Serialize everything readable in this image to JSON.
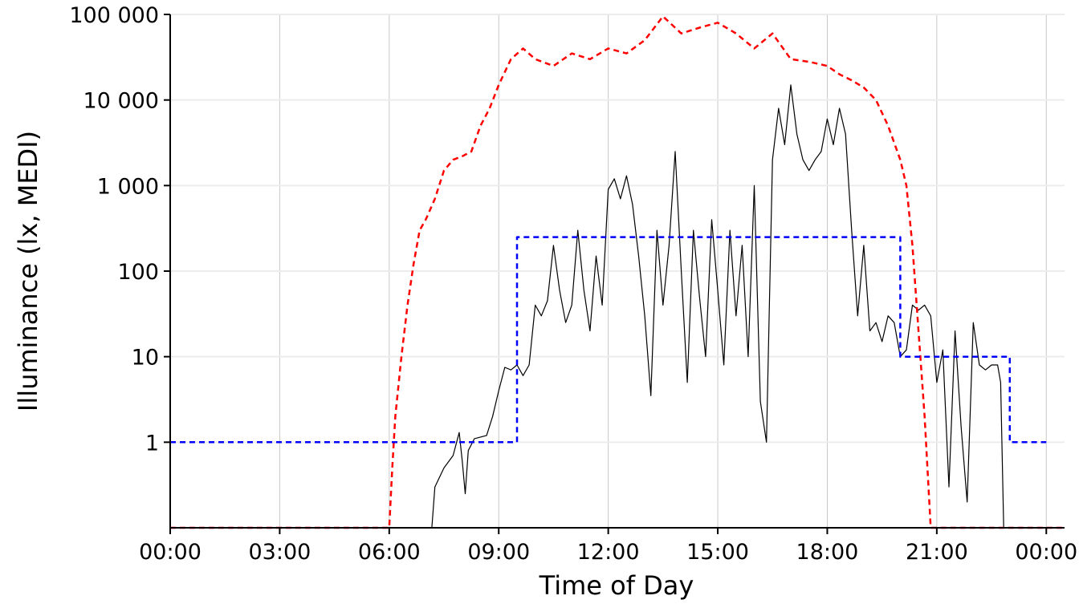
{
  "chart_data": {
    "type": "line",
    "title": "",
    "xlabel": "Time of Day",
    "ylabel": "Illuminance (lx, MEDI)",
    "x_unit": "time of day",
    "xlim": [
      "00:00",
      "24:30"
    ],
    "ylim": [
      0.1,
      100000
    ],
    "y_scale": "log10",
    "grid": true,
    "legend": "none",
    "x_ticks": [
      "00:00",
      "03:00",
      "06:00",
      "09:00",
      "12:00",
      "15:00",
      "18:00",
      "21:00",
      "00:00"
    ],
    "y_ticks": [
      {
        "value": 1,
        "label": "1"
      },
      {
        "value": 10,
        "label": "10"
      },
      {
        "value": 100,
        "label": "100"
      },
      {
        "value": 1000,
        "label": "1 000"
      },
      {
        "value": 10000,
        "label": "10 000"
      },
      {
        "value": 100000,
        "label": "100 000"
      }
    ],
    "series": [
      {
        "color": "#000000",
        "style": "solid",
        "points": [
          [
            "00:00",
            0.1
          ],
          [
            "07:10",
            0.1
          ],
          [
            "07:15",
            0.3
          ],
          [
            "07:30",
            0.5
          ],
          [
            "07:45",
            0.7
          ],
          [
            "07:55",
            1.3
          ],
          [
            "08:00",
            0.6
          ],
          [
            "08:05",
            0.25
          ],
          [
            "08:10",
            0.8
          ],
          [
            "08:20",
            1.1
          ],
          [
            "08:40",
            1.2
          ],
          [
            "08:50",
            2.0
          ],
          [
            "09:00",
            4.0
          ],
          [
            "09:10",
            7.5
          ],
          [
            "09:20",
            7.0
          ],
          [
            "09:30",
            8.0
          ],
          [
            "09:40",
            6.0
          ],
          [
            "09:50",
            8.0
          ],
          [
            "10:00",
            40
          ],
          [
            "10:10",
            30
          ],
          [
            "10:20",
            45
          ],
          [
            "10:30",
            200
          ],
          [
            "10:40",
            60
          ],
          [
            "10:50",
            25
          ],
          [
            "11:00",
            40
          ],
          [
            "11:10",
            300
          ],
          [
            "11:20",
            60
          ],
          [
            "11:30",
            20
          ],
          [
            "11:40",
            150
          ],
          [
            "11:50",
            40
          ],
          [
            "12:00",
            900
          ],
          [
            "12:10",
            1200
          ],
          [
            "12:20",
            700
          ],
          [
            "12:30",
            1300
          ],
          [
            "12:40",
            600
          ],
          [
            "12:50",
            150
          ],
          [
            "13:00",
            30
          ],
          [
            "13:10",
            3.5
          ],
          [
            "13:20",
            300
          ],
          [
            "13:30",
            40
          ],
          [
            "13:40",
            200
          ],
          [
            "13:50",
            2500
          ],
          [
            "14:00",
            100
          ],
          [
            "14:10",
            5
          ],
          [
            "14:20",
            300
          ],
          [
            "14:30",
            50
          ],
          [
            "14:40",
            10
          ],
          [
            "14:50",
            400
          ],
          [
            "15:00",
            60
          ],
          [
            "15:10",
            8
          ],
          [
            "15:20",
            300
          ],
          [
            "15:30",
            30
          ],
          [
            "15:40",
            200
          ],
          [
            "15:50",
            10
          ],
          [
            "16:00",
            1000
          ],
          [
            "16:10",
            3
          ],
          [
            "16:20",
            1
          ],
          [
            "16:30",
            2000
          ],
          [
            "16:40",
            8000
          ],
          [
            "16:50",
            3000
          ],
          [
            "17:00",
            15000
          ],
          [
            "17:10",
            4000
          ],
          [
            "17:20",
            2000
          ],
          [
            "17:30",
            1500
          ],
          [
            "17:40",
            2000
          ],
          [
            "17:50",
            2500
          ],
          [
            "18:00",
            6000
          ],
          [
            "18:10",
            3000
          ],
          [
            "18:20",
            8000
          ],
          [
            "18:30",
            4000
          ],
          [
            "18:40",
            300
          ],
          [
            "18:50",
            30
          ],
          [
            "19:00",
            200
          ],
          [
            "19:10",
            20
          ],
          [
            "19:20",
            25
          ],
          [
            "19:30",
            15
          ],
          [
            "19:40",
            30
          ],
          [
            "19:50",
            25
          ],
          [
            "20:00",
            10
          ],
          [
            "20:10",
            12
          ],
          [
            "20:20",
            40
          ],
          [
            "20:30",
            35
          ],
          [
            "20:40",
            40
          ],
          [
            "20:50",
            30
          ],
          [
            "21:00",
            5
          ],
          [
            "21:10",
            12
          ],
          [
            "21:20",
            0.3
          ],
          [
            "21:30",
            20
          ],
          [
            "21:40",
            1.5
          ],
          [
            "21:50",
            0.2
          ],
          [
            "22:00",
            25
          ],
          [
            "22:10",
            8
          ],
          [
            "22:20",
            7
          ],
          [
            "22:30",
            8
          ],
          [
            "22:40",
            8
          ],
          [
            "22:45",
            5
          ],
          [
            "22:50",
            0.1
          ],
          [
            "24:30",
            0.1
          ]
        ]
      },
      {
        "color": "#ff0000",
        "style": "dashed",
        "points": [
          [
            "00:00",
            0.1
          ],
          [
            "06:00",
            0.1
          ],
          [
            "06:05",
            0.5
          ],
          [
            "06:10",
            2.0
          ],
          [
            "06:20",
            10
          ],
          [
            "06:30",
            40
          ],
          [
            "06:40",
            120
          ],
          [
            "06:50",
            300
          ],
          [
            "07:00",
            400
          ],
          [
            "07:15",
            700
          ],
          [
            "07:30",
            1500
          ],
          [
            "07:45",
            2000
          ],
          [
            "08:00",
            2200
          ],
          [
            "08:15",
            2500
          ],
          [
            "08:30",
            5000
          ],
          [
            "08:45",
            8000
          ],
          [
            "09:00",
            15000
          ],
          [
            "09:20",
            30000
          ],
          [
            "09:40",
            40000
          ],
          [
            "10:00",
            30000
          ],
          [
            "10:30",
            25000
          ],
          [
            "11:00",
            35000
          ],
          [
            "11:30",
            30000
          ],
          [
            "12:00",
            40000
          ],
          [
            "12:30",
            35000
          ],
          [
            "13:00",
            50000
          ],
          [
            "13:30",
            95000
          ],
          [
            "14:00",
            60000
          ],
          [
            "14:30",
            70000
          ],
          [
            "15:00",
            80000
          ],
          [
            "15:30",
            60000
          ],
          [
            "16:00",
            40000
          ],
          [
            "16:30",
            60000
          ],
          [
            "17:00",
            30000
          ],
          [
            "17:30",
            28000
          ],
          [
            "18:00",
            25000
          ],
          [
            "18:20",
            20000
          ],
          [
            "18:40",
            17000
          ],
          [
            "19:00",
            14000
          ],
          [
            "19:20",
            10000
          ],
          [
            "19:40",
            5000
          ],
          [
            "20:00",
            2000
          ],
          [
            "20:10",
            1000
          ],
          [
            "20:20",
            200
          ],
          [
            "20:30",
            20
          ],
          [
            "20:40",
            2
          ],
          [
            "20:50",
            0.1
          ],
          [
            "24:30",
            0.1
          ]
        ]
      },
      {
        "color": "#0000ff",
        "style": "dashed",
        "step": true,
        "points": [
          [
            "00:00",
            1
          ],
          [
            "09:30",
            1
          ],
          [
            "09:30",
            250
          ],
          [
            "20:00",
            250
          ],
          [
            "20:00",
            10
          ],
          [
            "23:00",
            10
          ],
          [
            "23:00",
            1
          ],
          [
            "24:00",
            1
          ]
        ]
      }
    ]
  }
}
